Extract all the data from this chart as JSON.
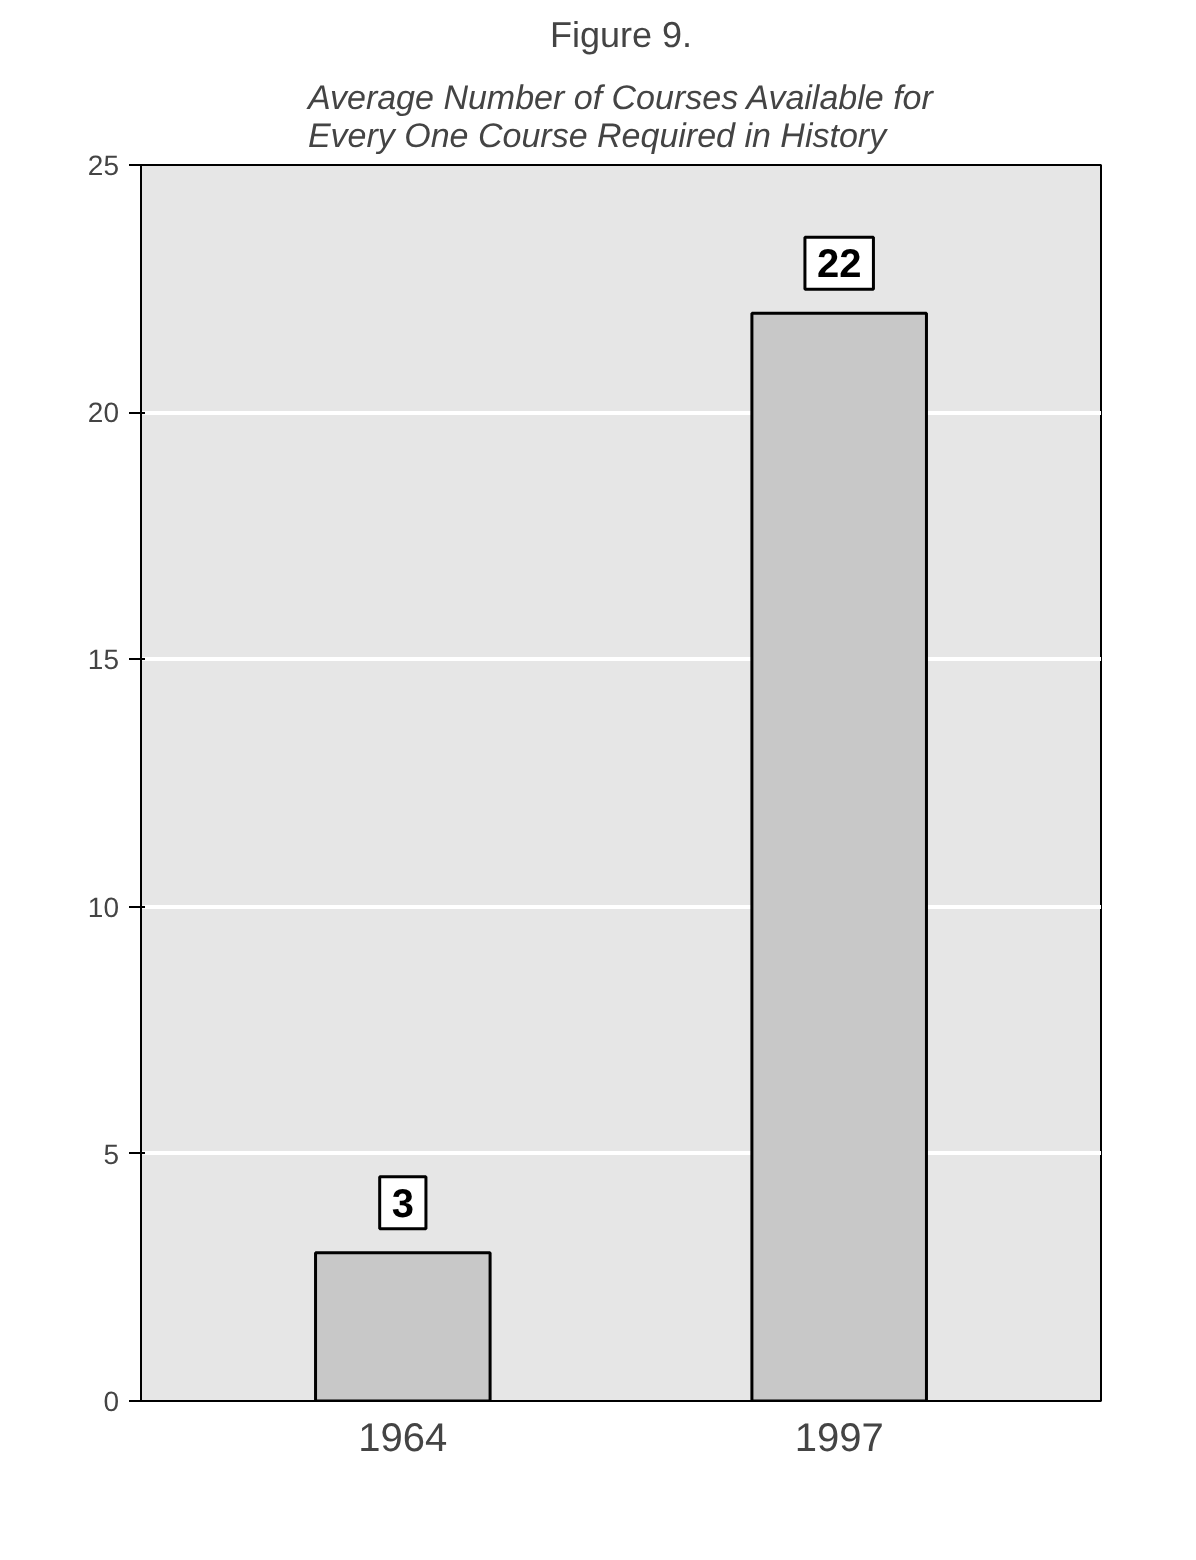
{
  "chart_data": {
    "type": "bar",
    "title": "Figure 9.",
    "subtitle": "Average Number of Courses Available for Every One Course Required in History",
    "categories": [
      "1964",
      "1997"
    ],
    "values": [
      3,
      22
    ],
    "color": "#c8c8c8",
    "ylim": [
      0,
      25
    ],
    "yticks": [
      0,
      5,
      10,
      15,
      20,
      25
    ],
    "grid": "y",
    "data_labels": true
  }
}
